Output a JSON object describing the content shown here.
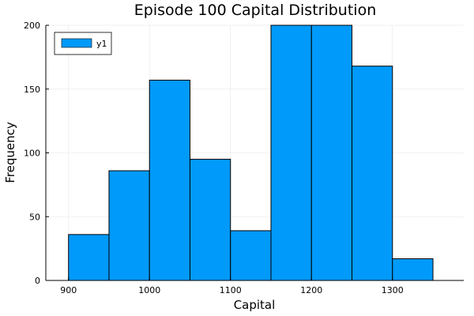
{
  "chart_data": {
    "type": "bar",
    "title": "Episode 100 Capital Distribution",
    "xlabel": "Capital",
    "ylabel": "Frequency",
    "bin_edges": [
      900,
      950,
      1000,
      1050,
      1100,
      1150,
      1200,
      1250,
      1300,
      1350
    ],
    "series": [
      {
        "name": "y1",
        "values": [
          36,
          86,
          157,
          95,
          39,
          201,
          201,
          168,
          17
        ]
      }
    ],
    "xlim": [
      872,
      1388
    ],
    "ylim": [
      0,
      200
    ],
    "xticks": [
      900,
      1000,
      1100,
      1200,
      1300
    ],
    "xtick_labels": [
      "900",
      "1000",
      "1100",
      "1200",
      "1300"
    ],
    "yticks": [
      0,
      50,
      100,
      150,
      200
    ],
    "ytick_labels": [
      "0",
      "50",
      "100",
      "150",
      "200"
    ],
    "grid": true,
    "legend": "top-left",
    "color": "#009AFA"
  }
}
